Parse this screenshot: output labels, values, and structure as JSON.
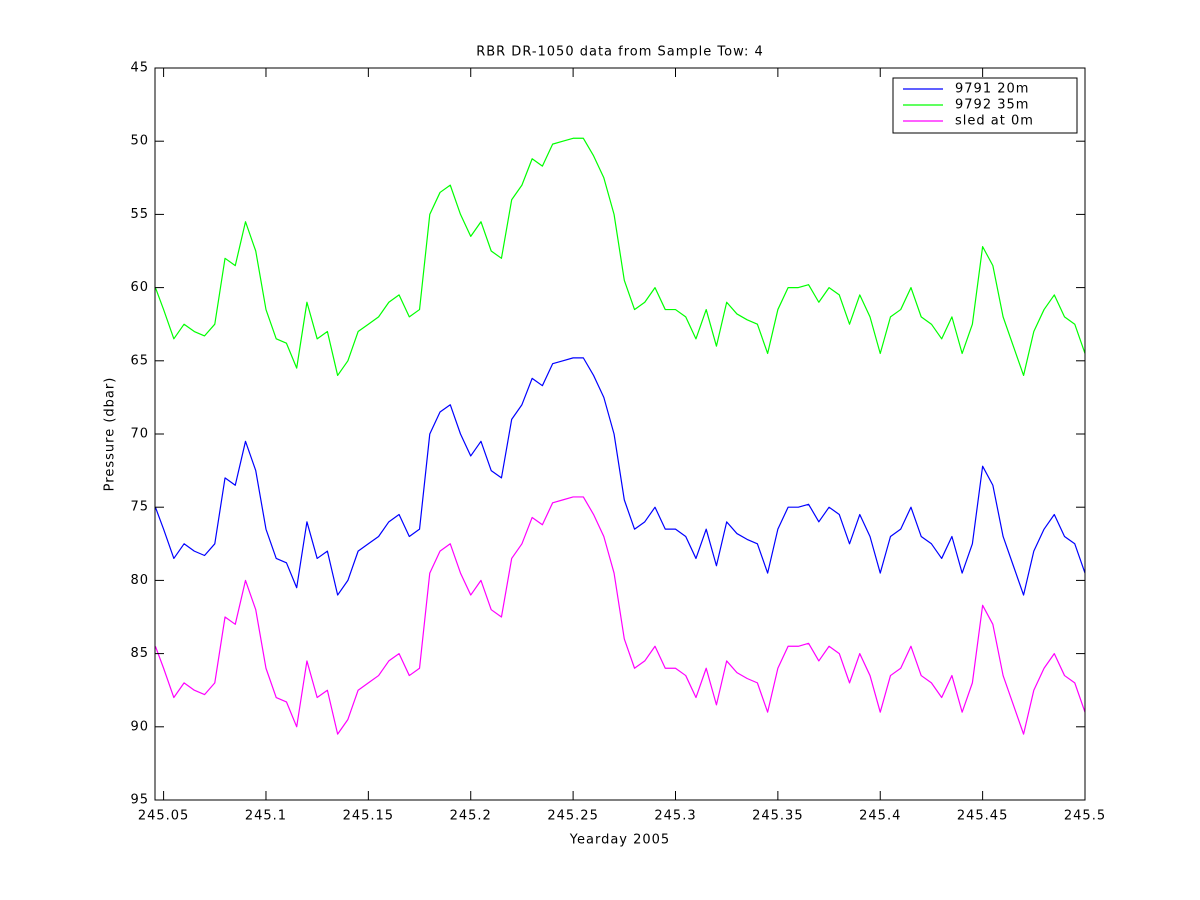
{
  "chart_data": {
    "type": "line",
    "title": "RBR DR-1050 data from Sample Tow: 4",
    "xlabel": "Yearday 2005",
    "ylabel": "Pressure (dbar)",
    "xlim": [
      245.0458,
      245.5
    ],
    "ylim": [
      45,
      95
    ],
    "y_reversed": true,
    "xticks": [
      245.05,
      245.1,
      245.15,
      245.2,
      245.25,
      245.3,
      245.35,
      245.4,
      245.45,
      245.5
    ],
    "yticks": [
      45,
      50,
      55,
      60,
      65,
      70,
      75,
      80,
      85,
      90,
      95
    ],
    "legend": "upper right",
    "x": [
      245.046,
      245.05,
      245.055,
      245.06,
      245.065,
      245.07,
      245.075,
      245.08,
      245.085,
      245.09,
      245.095,
      245.1,
      245.105,
      245.11,
      245.115,
      245.12,
      245.125,
      245.13,
      245.135,
      245.14,
      245.145,
      245.15,
      245.155,
      245.16,
      245.165,
      245.17,
      245.175,
      245.18,
      245.185,
      245.19,
      245.195,
      245.2,
      245.205,
      245.21,
      245.215,
      245.22,
      245.225,
      245.23,
      245.235,
      245.24,
      245.245,
      245.25,
      245.255,
      245.26,
      245.265,
      245.27,
      245.275,
      245.28,
      245.285,
      245.29,
      245.295,
      245.3,
      245.305,
      245.31,
      245.315,
      245.32,
      245.325,
      245.33,
      245.335,
      245.34,
      245.345,
      245.35,
      245.355,
      245.36,
      245.365,
      245.37,
      245.375,
      245.38,
      245.385,
      245.39,
      245.395,
      245.4,
      245.405,
      245.41,
      245.415,
      245.42,
      245.425,
      245.43,
      245.435,
      245.44,
      245.445,
      245.45,
      245.455,
      245.46,
      245.465,
      245.47,
      245.475,
      245.48,
      245.485,
      245.49,
      245.495,
      245.5
    ],
    "series": [
      {
        "name": "9791 20m",
        "color": "#0000ff",
        "values": [
          75,
          76.5,
          78.5,
          77.5,
          78,
          78.3,
          77.5,
          73,
          73.5,
          70.5,
          72.5,
          76.5,
          78.5,
          78.8,
          80.5,
          76,
          78.5,
          78,
          81,
          80,
          78,
          77.5,
          77,
          76,
          75.5,
          77,
          76.5,
          70,
          68.5,
          68,
          70,
          71.5,
          70.5,
          72.5,
          73,
          69,
          68,
          66.2,
          66.7,
          65.2,
          65,
          64.8,
          64.8,
          66,
          67.5,
          70,
          74.5,
          76.5,
          76,
          75,
          76.5,
          76.5,
          77,
          78.5,
          76.5,
          79,
          76,
          76.8,
          77.2,
          77.5,
          79.5,
          76.5,
          75,
          75,
          74.8,
          76,
          75,
          75.5,
          77.5,
          75.5,
          77,
          79.5,
          77,
          76.5,
          75,
          77,
          77.5,
          78.5,
          77,
          79.5,
          77.5,
          72.2,
          73.5,
          77,
          79,
          81,
          78,
          76.5,
          75.5,
          77,
          77.5,
          79.5
        ]
      },
      {
        "name": "9792 35m",
        "color": "#00ff00",
        "values": [
          60,
          61.5,
          63.5,
          62.5,
          63,
          63.3,
          62.5,
          58,
          58.5,
          55.5,
          57.5,
          61.5,
          63.5,
          63.8,
          65.5,
          61,
          63.5,
          63,
          66,
          65,
          63,
          62.5,
          62,
          61,
          60.5,
          62,
          61.5,
          55,
          53.5,
          53,
          55,
          56.5,
          55.5,
          57.5,
          58,
          54,
          53,
          51.2,
          51.7,
          50.2,
          50,
          49.8,
          49.8,
          51,
          52.5,
          55,
          59.5,
          61.5,
          61,
          60,
          61.5,
          61.5,
          62,
          63.5,
          61.5,
          64,
          61,
          61.8,
          62.2,
          62.5,
          64.5,
          61.5,
          60,
          60,
          59.8,
          61,
          60,
          60.5,
          62.5,
          60.5,
          62,
          64.5,
          62,
          61.5,
          60,
          62,
          62.5,
          63.5,
          62,
          64.5,
          62.5,
          57.2,
          58.5,
          62,
          64,
          66,
          63,
          61.5,
          60.5,
          62,
          62.5,
          64.5
        ]
      },
      {
        "name": "sled at 0m",
        "color": "#ff00ff",
        "values": [
          84.5,
          86,
          88,
          87,
          87.5,
          87.8,
          87,
          82.5,
          83,
          80,
          82,
          86,
          88,
          88.3,
          90,
          85.5,
          88,
          87.5,
          90.5,
          89.5,
          87.5,
          87,
          86.5,
          85.5,
          85,
          86.5,
          86,
          79.5,
          78,
          77.5,
          79.5,
          81,
          80,
          82,
          82.5,
          78.5,
          77.5,
          75.7,
          76.2,
          74.7,
          74.5,
          74.3,
          74.3,
          75.5,
          77,
          79.5,
          84,
          86,
          85.5,
          84.5,
          86,
          86,
          86.5,
          88,
          86,
          88.5,
          85.5,
          86.3,
          86.7,
          87,
          89,
          86,
          84.5,
          84.5,
          84.3,
          85.5,
          84.5,
          85,
          87,
          85,
          86.5,
          89,
          86.5,
          86,
          84.5,
          86.5,
          87,
          88,
          86.5,
          89,
          87,
          81.7,
          83,
          86.5,
          88.5,
          90.5,
          87.5,
          86,
          85,
          86.5,
          87,
          89
        ]
      }
    ]
  }
}
